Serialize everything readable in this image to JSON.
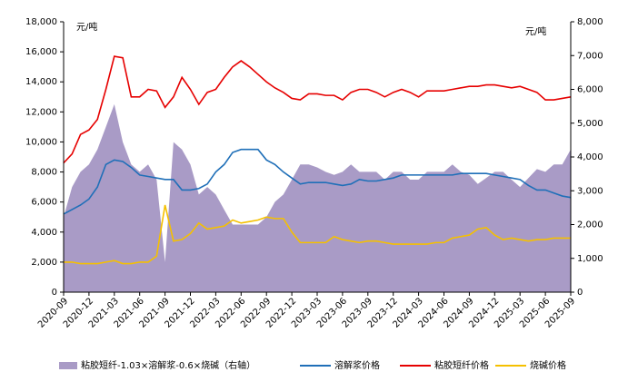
{
  "chart_data": {
    "type": "area_line",
    "y_unit": "元/吨",
    "y2_unit": "元/吨",
    "categories": [
      "2020-09",
      null,
      null,
      "2020-12",
      null,
      null,
      "2021-03",
      null,
      null,
      "2021-06",
      null,
      null,
      "2021-09",
      null,
      null,
      "2021-12",
      null,
      null,
      "2022-03",
      null,
      null,
      "2022-06",
      null,
      null,
      "2022-09",
      null,
      null,
      "2022-12",
      null,
      null,
      "2023-03",
      null,
      null,
      "2023-06",
      null,
      null,
      "2023-09",
      null,
      null,
      "2023-12",
      null,
      null,
      "2024-03",
      null,
      null,
      "2024-06",
      null,
      null,
      "2024-09",
      null,
      null,
      "2024-12",
      null,
      null,
      "2025-03",
      null,
      null,
      "2025-06",
      null,
      null,
      "2025-09"
    ],
    "ylim": [
      0,
      18000
    ],
    "yticks": [
      0,
      {
        "value": 2000,
        "label": "2,000"
      },
      {
        "value": 4000,
        "label": "4,000"
      },
      {
        "value": 6000,
        "label": "6,000"
      },
      {
        "value": 8000,
        "label": "8,000"
      },
      {
        "value": 10000,
        "label": "10,000"
      },
      {
        "value": 12000,
        "label": "12,000"
      },
      {
        "value": 14000,
        "label": "14,000"
      },
      {
        "value": 16000,
        "label": "16,000"
      },
      {
        "value": 18000,
        "label": "18,000"
      }
    ],
    "y2lim": [
      0,
      8000
    ],
    "y2ticks": [
      0,
      {
        "value": 1000,
        "label": "1,000"
      },
      {
        "value": 2000,
        "label": "2,000"
      },
      {
        "value": 3000,
        "label": "3,000"
      },
      {
        "value": 4000,
        "label": "4,000"
      },
      {
        "value": 5000,
        "label": "5,000"
      },
      {
        "value": 6000,
        "label": "6,000"
      },
      {
        "value": 7000,
        "label": "7,000"
      },
      {
        "value": 8000,
        "label": "8,000"
      }
    ],
    "series": [
      {
        "name": "粘胶短纤-1.03×溶解浆-0.6×烧碱（右轴）",
        "kind": "area",
        "axis": "y2",
        "color": "#a99bc6",
        "values": [
          2220,
          3110,
          3560,
          3780,
          4220,
          4890,
          5560,
          4440,
          3780,
          3560,
          3780,
          3330,
          890,
          4440,
          4220,
          3780,
          2890,
          3110,
          2890,
          2440,
          2000,
          2000,
          2000,
          2000,
          2220,
          2670,
          2890,
          3330,
          3780,
          3780,
          3690,
          3560,
          3470,
          3560,
          3780,
          3560,
          3560,
          3560,
          3330,
          3560,
          3560,
          3330,
          3330,
          3560,
          3560,
          3560,
          3780,
          3560,
          3470,
          3200,
          3380,
          3560,
          3560,
          3330,
          3110,
          3380,
          3640,
          3560,
          3780,
          3780,
          4220
        ]
      },
      {
        "name": "溶解浆价格",
        "kind": "line",
        "color": "#1f6fb8",
        "values": [
          5200,
          5500,
          5800,
          6200,
          7000,
          8500,
          8800,
          8700,
          8300,
          7800,
          7700,
          7600,
          7500,
          7500,
          6800,
          6800,
          6900,
          7200,
          8000,
          8500,
          9300,
          9500,
          9500,
          9500,
          8800,
          8500,
          8000,
          7600,
          7200,
          7300,
          7300,
          7300,
          7200,
          7100,
          7200,
          7500,
          7400,
          7400,
          7500,
          7600,
          7800,
          7800,
          7800,
          7800,
          7800,
          7800,
          7800,
          7900,
          7900,
          7900,
          7900,
          7800,
          7700,
          7600,
          7500,
          7100,
          6800,
          6800,
          6600,
          6400,
          6300
        ]
      },
      {
        "name": "粘胶短纤价格",
        "kind": "line",
        "color": "#e60000",
        "values": [
          8600,
          9200,
          10500,
          10800,
          11500,
          13500,
          15700,
          15600,
          13000,
          13000,
          13500,
          13400,
          12300,
          13000,
          14300,
          13500,
          12500,
          13300,
          13500,
          14300,
          15000,
          15400,
          15000,
          14500,
          14000,
          13600,
          13300,
          12900,
          12800,
          13200,
          13200,
          13100,
          13100,
          12800,
          13300,
          13500,
          13500,
          13300,
          13000,
          13300,
          13500,
          13300,
          13000,
          13400,
          13400,
          13400,
          13500,
          13600,
          13700,
          13700,
          13800,
          13800,
          13700,
          13600,
          13700,
          13500,
          13300,
          12800,
          12800,
          12900,
          13000
        ]
      },
      {
        "name": "烧碱价格",
        "kind": "line",
        "color": "#f5c000",
        "values": [
          2000,
          2000,
          1900,
          1900,
          1900,
          2000,
          2100,
          1900,
          1900,
          2000,
          2000,
          2400,
          5800,
          3400,
          3500,
          3900,
          4600,
          4200,
          4300,
          4400,
          4800,
          4600,
          4700,
          4800,
          5000,
          4900,
          4900,
          4000,
          3300,
          3300,
          3300,
          3300,
          3700,
          3500,
          3400,
          3300,
          3400,
          3400,
          3300,
          3200,
          3200,
          3200,
          3200,
          3200,
          3300,
          3300,
          3600,
          3700,
          3800,
          4200,
          4300,
          3800,
          3500,
          3600,
          3500,
          3400,
          3500,
          3500,
          3600,
          3600,
          3600
        ]
      }
    ]
  }
}
